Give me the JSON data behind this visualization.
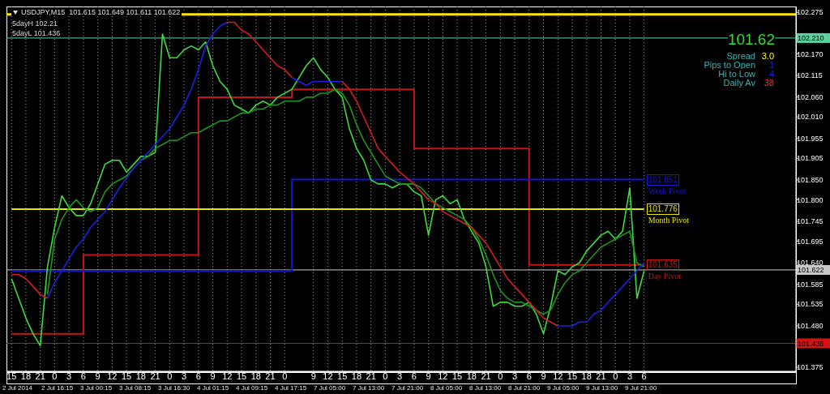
{
  "chart_data": {
    "type": "line",
    "title": "USDJPY,M15  101.615 101.649 101.611 101.622",
    "categories": [
      "15",
      null,
      "18",
      null,
      "21",
      null,
      "0",
      null,
      "3",
      null,
      "6",
      null,
      "9",
      null,
      "12",
      null,
      "15",
      null,
      "18",
      null,
      "21",
      null,
      "0",
      null,
      "3",
      null,
      "6",
      null,
      "9",
      null,
      "12",
      null,
      "15",
      null,
      "18",
      null,
      "21",
      null,
      "0",
      null,
      null,
      null,
      "9",
      null,
      "12",
      null,
      "15",
      null,
      "18",
      null,
      "21",
      null,
      "0",
      null,
      "3",
      null,
      "6",
      null,
      "9",
      null,
      "12",
      null,
      "15",
      null,
      "18",
      null,
      "21",
      null,
      "0",
      null,
      "3",
      null,
      "6",
      null,
      "9",
      null,
      "12",
      null,
      "15",
      null,
      "18",
      null,
      "21",
      null,
      "0",
      null,
      "3",
      null,
      "6"
    ],
    "series": [
      {
        "type": "step",
        "color": "#c81414",
        "values": [
          101.46,
          101.46,
          101.46,
          101.46,
          101.46,
          101.46,
          101.46,
          101.46,
          101.46,
          101.46,
          101.66,
          101.66,
          101.66,
          101.66,
          101.66,
          101.66,
          101.66,
          101.66,
          101.66,
          101.66,
          101.66,
          101.66,
          101.66,
          101.66,
          101.66,
          101.66,
          102.06,
          102.06,
          102.06,
          102.06,
          102.06,
          102.06,
          102.06,
          102.06,
          102.06,
          102.06,
          102.06,
          102.06,
          102.06,
          102.08,
          102.08,
          102.08,
          102.08,
          102.08,
          102.08,
          102.08,
          102.08,
          102.08,
          102.08,
          102.08,
          102.08,
          102.08,
          102.08,
          102.08,
          102.08,
          102.08,
          101.93,
          101.93,
          101.93,
          101.93,
          101.93,
          101.93,
          101.93,
          101.93,
          101.93,
          101.93,
          101.93,
          101.93,
          101.93,
          101.93,
          101.93,
          101.93,
          101.635,
          101.635,
          101.635,
          101.635,
          101.635,
          101.635,
          101.635,
          101.635,
          101.635,
          101.635,
          101.635,
          101.635,
          101.635,
          101.635,
          101.635,
          101.635,
          101.635
        ]
      },
      {
        "type": "step",
        "color": "#1414d2",
        "values": [
          101.62,
          101.62,
          101.62,
          101.62,
          101.62,
          101.62,
          101.62,
          101.62,
          101.62,
          101.62,
          101.62,
          101.62,
          101.62,
          101.62,
          101.62,
          101.62,
          101.62,
          101.62,
          101.62,
          101.62,
          101.62,
          101.62,
          101.62,
          101.62,
          101.62,
          101.62,
          101.62,
          101.62,
          101.62,
          101.62,
          101.62,
          101.62,
          101.62,
          101.62,
          101.62,
          101.62,
          101.62,
          101.62,
          101.62,
          101.851,
          101.851,
          101.851,
          101.851,
          101.851,
          101.851,
          101.851,
          101.851,
          101.851,
          101.851,
          101.851,
          101.851,
          101.851,
          101.851,
          101.851,
          101.851,
          101.851,
          101.851,
          101.851,
          101.851,
          101.851,
          101.851,
          101.851,
          101.851,
          101.851,
          101.851,
          101.851,
          101.851,
          101.851,
          101.851,
          101.851,
          101.851,
          101.851,
          101.851,
          101.851,
          101.851,
          101.851,
          101.851,
          101.851,
          101.851,
          101.851,
          101.851,
          101.851,
          101.851,
          101.851,
          101.851,
          101.851,
          101.851,
          101.851,
          101.851
        ]
      },
      {
        "type": "step",
        "color": "#e6e600",
        "values": [
          101.776,
          101.776,
          101.776,
          101.776,
          101.776,
          101.776,
          101.776,
          101.776,
          101.776,
          101.776,
          101.776,
          101.776,
          101.776,
          101.776,
          101.776,
          101.776,
          101.776,
          101.776,
          101.776,
          101.776,
          101.776,
          101.776,
          101.776,
          101.776,
          101.776,
          101.776,
          101.776,
          101.776,
          101.776,
          101.776,
          101.776,
          101.776,
          101.776,
          101.776,
          101.776,
          101.776,
          101.776,
          101.776,
          101.776,
          101.776,
          101.776,
          101.776,
          101.776,
          101.776,
          101.776,
          101.776,
          101.776,
          101.776,
          101.776,
          101.776,
          101.776,
          101.776,
          101.776,
          101.776,
          101.776,
          101.776,
          101.776,
          101.776,
          101.776,
          101.776,
          101.776,
          101.776,
          101.776,
          101.776,
          101.776,
          101.776,
          101.776,
          101.776,
          101.776,
          101.776,
          101.776,
          101.776,
          101.776,
          101.776,
          101.776,
          101.776,
          101.776,
          101.776,
          101.776,
          101.776,
          101.776,
          101.776,
          101.776,
          101.776,
          101.776,
          101.776,
          101.776,
          101.776,
          101.776
        ]
      },
      {
        "type": "line",
        "color": "#3cdc3c",
        "values": [
          101.6,
          101.55,
          101.5,
          101.46,
          101.43,
          101.63,
          101.73,
          101.81,
          101.78,
          101.76,
          101.76,
          101.79,
          101.84,
          101.89,
          101.9,
          101.9,
          101.87,
          101.89,
          101.91,
          101.91,
          101.92,
          102.22,
          102.16,
          102.16,
          102.18,
          102.19,
          102.18,
          102.2,
          102.14,
          102.1,
          102.08,
          102.04,
          102.03,
          102.02,
          102.04,
          102.05,
          102.04,
          102.06,
          102.07,
          102.08,
          102.11,
          102.14,
          102.16,
          102.13,
          102.11,
          102.08,
          102.06,
          101.98,
          101.93,
          101.9,
          101.85,
          101.84,
          101.84,
          101.83,
          101.84,
          101.84,
          101.82,
          101.81,
          101.71,
          101.8,
          101.81,
          101.79,
          101.8,
          101.75,
          101.72,
          101.69,
          101.63,
          101.53,
          101.54,
          101.54,
          101.53,
          101.53,
          101.54,
          101.51,
          101.46,
          101.53,
          101.62,
          101.61,
          101.63,
          101.64,
          101.67,
          101.69,
          101.71,
          101.72,
          101.7,
          101.72,
          101.83,
          101.55,
          101.62
        ]
      },
      {
        "type": "line",
        "color": "#1e961e",
        "values": [
          null,
          null,
          null,
          null,
          null,
          101.56,
          101.7,
          101.75,
          101.78,
          101.8,
          101.78,
          101.77,
          101.78,
          101.82,
          101.84,
          101.85,
          101.86,
          101.88,
          101.9,
          101.91,
          101.93,
          101.94,
          101.95,
          101.95,
          101.96,
          101.97,
          101.97,
          101.98,
          101.99,
          102.0,
          102.0,
          102.01,
          102.02,
          102.02,
          102.03,
          102.03,
          102.04,
          102.04,
          102.05,
          102.05,
          102.05,
          102.06,
          102.06,
          102.07,
          102.07,
          102.08,
          102.07,
          102.04,
          101.99,
          101.95,
          101.92,
          101.89,
          101.86,
          101.85,
          101.84,
          101.84,
          101.84,
          101.83,
          101.81,
          101.79,
          101.78,
          101.77,
          101.76,
          101.75,
          101.73,
          101.7,
          101.66,
          101.61,
          101.57,
          101.55,
          101.54,
          101.54,
          101.53,
          101.52,
          101.51,
          101.52,
          101.56,
          101.59,
          101.61,
          101.62,
          101.64,
          101.66,
          101.68,
          101.69,
          101.7,
          101.71,
          101.72,
          101.64,
          101.63
        ]
      },
      {
        "type": "line",
        "color": "#1e1ee6",
        "values": [
          null,
          null,
          null,
          null,
          null,
          101.55,
          101.59,
          101.62,
          101.65,
          101.68,
          101.7,
          101.73,
          101.75,
          101.77,
          101.8,
          101.83,
          101.855,
          101.88,
          101.9,
          101.92,
          101.94,
          101.96,
          101.98,
          102.01,
          102.04,
          102.08,
          102.13,
          102.19,
          102.22,
          102.24,
          102.25,
          null,
          null,
          null,
          null,
          null,
          null,
          null,
          null,
          102.11,
          102.1,
          102.09,
          102.1,
          102.1,
          102.1,
          102.1,
          102.1,
          null,
          null,
          null,
          null,
          null,
          null,
          null,
          null,
          null,
          null,
          null,
          null,
          null,
          null,
          null,
          null,
          null,
          null,
          null,
          null,
          null,
          null,
          null,
          null,
          null,
          null,
          null,
          null,
          null,
          101.48,
          101.48,
          101.48,
          101.49,
          101.49,
          101.51,
          101.52,
          101.54,
          101.56,
          101.58,
          101.6,
          101.62,
          101.64
        ]
      },
      {
        "type": "line",
        "color": "#d21e1e",
        "values": [
          101.61,
          101.61,
          101.6,
          101.58,
          101.56,
          101.55,
          null,
          null,
          null,
          null,
          null,
          null,
          null,
          null,
          null,
          null,
          null,
          null,
          null,
          null,
          null,
          null,
          null,
          null,
          null,
          null,
          null,
          null,
          null,
          null,
          102.25,
          102.25,
          102.23,
          102.22,
          102.2,
          102.18,
          102.16,
          102.14,
          102.13,
          102.11,
          null,
          null,
          null,
          null,
          null,
          null,
          102.1,
          102.08,
          102.05,
          102.01,
          101.97,
          101.93,
          101.91,
          101.89,
          101.87,
          101.855,
          101.84,
          101.82,
          101.8,
          101.79,
          101.77,
          101.76,
          101.75,
          101.74,
          101.73,
          101.71,
          101.69,
          101.66,
          101.63,
          101.6,
          101.58,
          101.56,
          101.54,
          101.52,
          101.5,
          101.49,
          101.48,
          null,
          null,
          null,
          null,
          null,
          null,
          null,
          null,
          null,
          null,
          null,
          null
        ]
      }
    ],
    "ylim": [
      101.365,
      102.29
    ],
    "yticks": [
      102.275,
      {
        "value": 102.17,
        "label": "102.170"
      },
      102.115,
      {
        "value": 102.06,
        "label": "102.060"
      },
      {
        "value": 102.01,
        "label": "102.010"
      },
      101.955,
      101.905,
      {
        "value": 101.85,
        "label": "101.850"
      },
      {
        "value": 101.8,
        "label": "101.800"
      },
      101.745,
      101.695,
      {
        "value": 101.64,
        "label": "101.640"
      },
      101.585,
      101.535,
      {
        "value": 101.48,
        "label": "101.480"
      },
      101.375
    ],
    "grid": "x",
    "ref_lines": [
      {
        "axis": "y",
        "value": 102.27,
        "color": "#ffe600"
      },
      {
        "axis": "y",
        "value": 102.21,
        "label": "102.210",
        "color": "#5ad2a0"
      },
      {
        "axis": "y",
        "value": 101.622,
        "label": "101.622",
        "color": "#c8c8c8"
      },
      {
        "axis": "y",
        "value": 101.436,
        "label": "101.436",
        "color": "#d21414"
      }
    ],
    "annotations": [
      "5dayH 102.21",
      "5dayL 101.436",
      "101.62",
      "Spread",
      "3.0",
      "Pips to Open",
      "1",
      "Hi to Low",
      "4",
      "Daily Av",
      "38",
      "2 Jul 2014",
      "2 Jul 16:15",
      "3 Jul 00:15",
      "3 Jul 08:15",
      "3 Jul 16:30",
      "4 Jul 01:15",
      "4 Jul 09:15",
      "4 Jul 17:15",
      "7 Jul 05:00",
      "7 Jul 13:00",
      "7 Jul 21:00",
      "8 Jul 05:00",
      "8 Jul 13:00",
      "8 Jul 21:00",
      "9 Jul 05:00",
      "9 Jul 13:00",
      "9 Jul 21:00",
      {
        "text": "101.851",
        "y": 101.851
      },
      {
        "text": "101.776",
        "y": 101.776
      },
      {
        "text": "101.635",
        "y": 101.635
      },
      "Week Pivot",
      "Month Pivot",
      "Day Pivot"
    ]
  }
}
